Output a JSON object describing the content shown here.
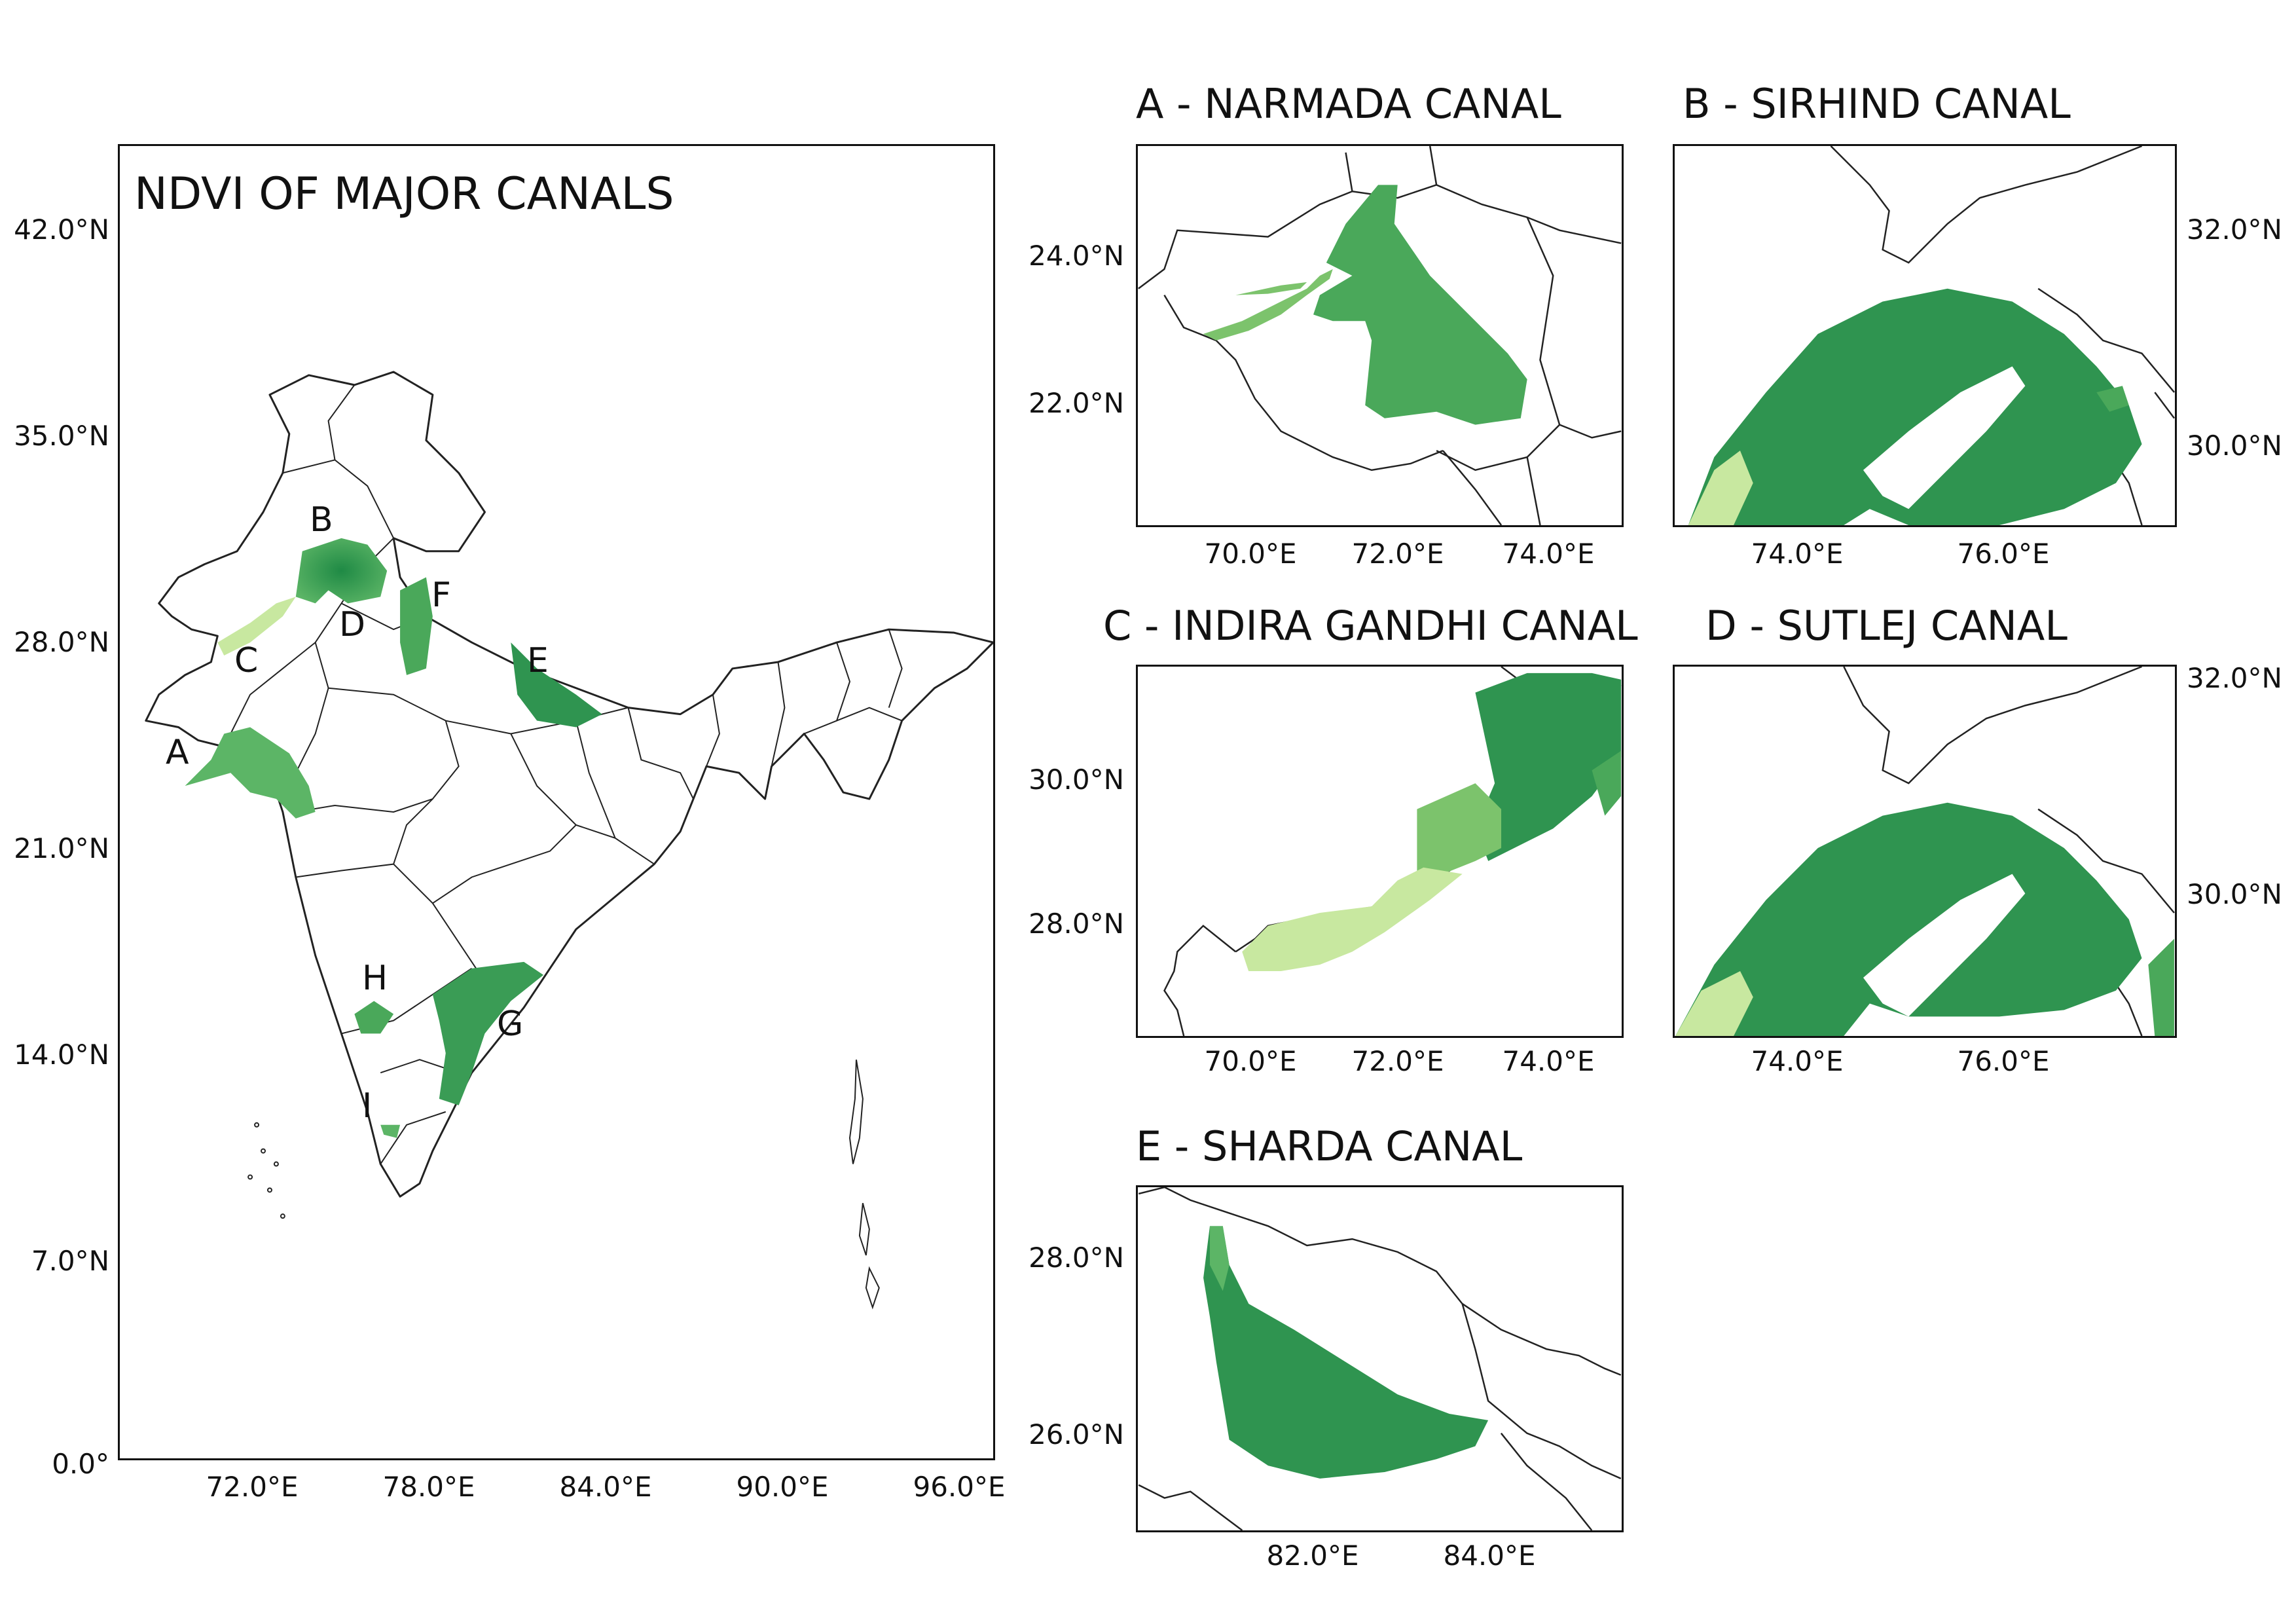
{
  "main_map": {
    "title": "NDVI OF MAJOR CANALS",
    "lat_ticks": [
      "42.0°N",
      "35.0°N",
      "28.0°N",
      "21.0°N",
      "14.0°N",
      "7.0°N",
      "0.0°"
    ],
    "lon_ticks": [
      "72.0°E",
      "78.0°E",
      "84.0°E",
      "90.0°E",
      "96.0°E"
    ],
    "labels": [
      "A",
      "B",
      "C",
      "D",
      "E",
      "F",
      "G",
      "H",
      "I"
    ]
  },
  "insets": [
    {
      "id": "A",
      "title": "A - NARMADA CANAL",
      "lat_ticks": [
        "24.0°N",
        "22.0°N"
      ],
      "lon_ticks": [
        "70.0°E",
        "72.0°E",
        "74.0°E"
      ]
    },
    {
      "id": "B",
      "title": "B - SIRHIND CANAL",
      "lat_ticks": [
        "32.0°N",
        "30.0°N"
      ],
      "lon_ticks": [
        "74.0°E",
        "76.0°E"
      ]
    },
    {
      "id": "C",
      "title": "C - INDIRA GANDHI CANAL",
      "lat_ticks": [
        "30.0°N",
        "28.0°N"
      ],
      "lon_ticks": [
        "70.0°E",
        "72.0°E",
        "74.0°E"
      ]
    },
    {
      "id": "D",
      "title": "D - SUTLEJ CANAL",
      "lat_ticks": [
        "32.0°N",
        "30.0°N"
      ],
      "lon_ticks": [
        "74.0°E",
        "76.0°E"
      ]
    },
    {
      "id": "E",
      "title": "E - SHARDA CANAL",
      "lat_ticks": [
        "28.0°N",
        "26.0°N"
      ],
      "lon_ticks": [
        "82.0°E",
        "84.0°E"
      ]
    }
  ],
  "colors": {
    "border": "#222222",
    "ndvi_high": "#1f8a45",
    "ndvi_mid": "#4aa85a",
    "ndvi_low": "#c8e8a0"
  }
}
